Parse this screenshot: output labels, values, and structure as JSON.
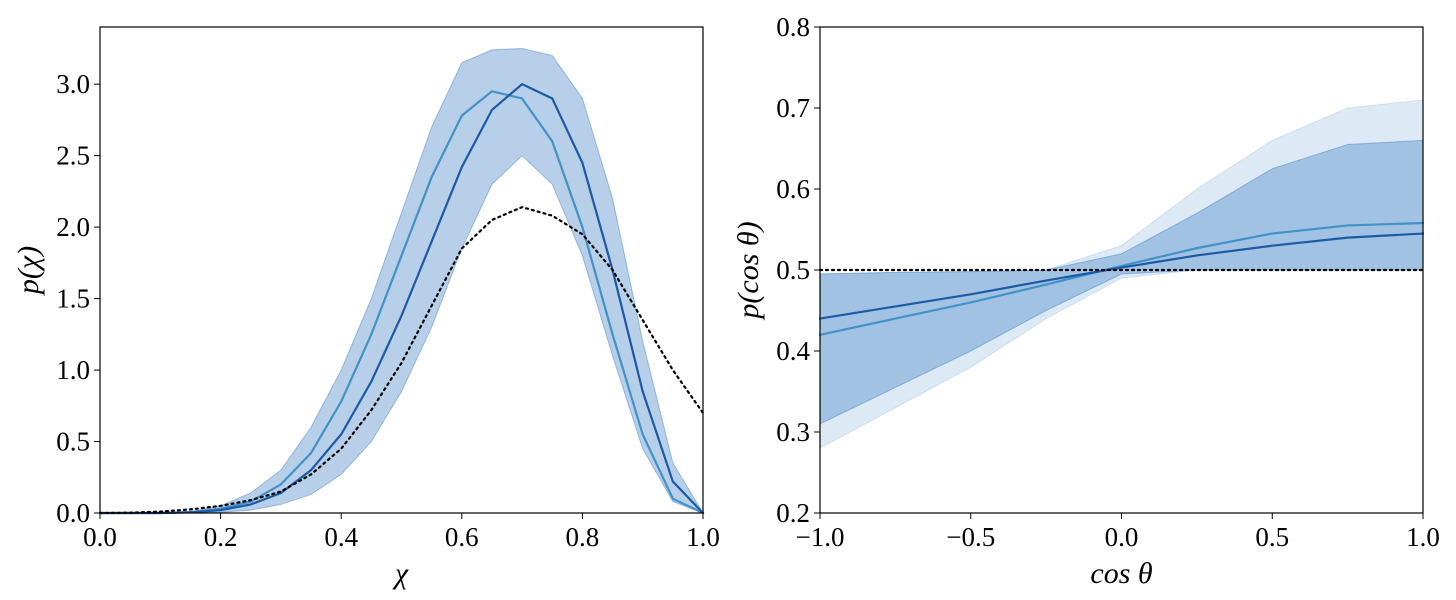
{
  "chart_data": [
    {
      "type": "line",
      "xlabel": "χ",
      "ylabel": "p(χ)",
      "x": [
        0,
        0.05,
        0.1,
        0.15,
        0.2,
        0.25,
        0.3,
        0.35,
        0.4,
        0.45,
        0.5,
        0.55,
        0.6,
        0.65,
        0.7,
        0.75,
        0.8,
        0.85,
        0.9,
        0.95,
        1.0
      ],
      "xlim": [
        0,
        1
      ],
      "ylim": [
        0,
        3.4
      ],
      "xticks": [
        {
          "value": 0,
          "label": "0.0"
        },
        0.2,
        0.4,
        0.6,
        0.8,
        {
          "value": 1,
          "label": "1.0"
        }
      ],
      "yticks": [
        {
          "value": 0,
          "label": "0.0"
        },
        0.5,
        {
          "value": 1,
          "label": "1.0"
        },
        1.5,
        {
          "value": 2,
          "label": "2.0"
        },
        2.5,
        {
          "value": 3,
          "label": "3.0"
        }
      ],
      "bands": [
        {
          "color": "#4a88c7",
          "lower": [
            0,
            0,
            0,
            0,
            0.005,
            0.02,
            0.06,
            0.13,
            0.27,
            0.5,
            0.85,
            1.3,
            1.85,
            2.3,
            2.5,
            2.3,
            1.8,
            1.1,
            0.45,
            0.08,
            0
          ],
          "upper": [
            0,
            0,
            0,
            0.01,
            0.05,
            0.14,
            0.3,
            0.6,
            1.0,
            1.5,
            2.1,
            2.7,
            3.15,
            3.24,
            3.25,
            3.2,
            2.9,
            2.2,
            1.2,
            0.35,
            0
          ]
        }
      ],
      "series": [
        {
          "color": "#4292c6",
          "style": "solid",
          "values": [
            0,
            0,
            0,
            0.005,
            0.03,
            0.08,
            0.2,
            0.42,
            0.78,
            1.25,
            1.8,
            2.35,
            2.78,
            2.95,
            2.9,
            2.6,
            2.0,
            1.25,
            0.55,
            0.1,
            0
          ]
        },
        {
          "color": "#1c5aa6",
          "style": "solid",
          "values": [
            0,
            0,
            0,
            0.005,
            0.02,
            0.06,
            0.14,
            0.3,
            0.55,
            0.92,
            1.38,
            1.9,
            2.42,
            2.82,
            3.0,
            2.9,
            2.45,
            1.7,
            0.85,
            0.22,
            0
          ]
        },
        {
          "color": "#000000",
          "style": "dotted",
          "values": [
            0,
            0.002,
            0.01,
            0.025,
            0.05,
            0.09,
            0.15,
            0.27,
            0.45,
            0.72,
            1.05,
            1.45,
            1.85,
            2.05,
            2.14,
            2.08,
            1.95,
            1.7,
            1.35,
            1.0,
            0.7
          ]
        }
      ]
    },
    {
      "type": "line",
      "xlabel": "cos θ",
      "ylabel": "p(cos θ)",
      "x": [
        -1,
        -0.75,
        -0.5,
        -0.25,
        0,
        0.25,
        0.5,
        0.75,
        1
      ],
      "xlim": [
        -1,
        1
      ],
      "ylim": [
        0.2,
        0.8
      ],
      "xticks": [
        {
          "value": -1,
          "label": "−1.0"
        },
        {
          "value": -0.5,
          "label": "−0.5"
        },
        {
          "value": 0,
          "label": "0.0"
        },
        0.5,
        {
          "value": 1,
          "label": "1.0"
        }
      ],
      "yticks": [
        0.2,
        0.3,
        0.4,
        0.5,
        0.6,
        0.7,
        0.8
      ],
      "bands": [
        {
          "color": "#a9cbe8",
          "lower": [
            0.28,
            0.33,
            0.38,
            0.44,
            0.49,
            0.5,
            0.5,
            0.5,
            0.5
          ],
          "upper": [
            0.495,
            0.497,
            0.498,
            0.5,
            0.53,
            0.6,
            0.66,
            0.7,
            0.71
          ]
        },
        {
          "color": "#4a88c7",
          "lower": [
            0.31,
            0.355,
            0.4,
            0.45,
            0.495,
            0.5,
            0.5,
            0.5,
            0.5
          ],
          "upper": [
            0.495,
            0.497,
            0.498,
            0.5,
            0.52,
            0.57,
            0.625,
            0.655,
            0.66
          ]
        }
      ],
      "series": [
        {
          "color": "#4292c6",
          "style": "solid",
          "values": [
            0.42,
            0.44,
            0.46,
            0.482,
            0.505,
            0.527,
            0.545,
            0.555,
            0.558
          ]
        },
        {
          "color": "#1c5aa6",
          "style": "solid",
          "values": [
            0.44,
            0.455,
            0.47,
            0.487,
            0.503,
            0.518,
            0.53,
            0.54,
            0.545
          ]
        },
        {
          "color": "#000000",
          "style": "dotted",
          "values": [
            0.5,
            0.5,
            0.5,
            0.5,
            0.5,
            0.5,
            0.5,
            0.5,
            0.5
          ]
        }
      ]
    }
  ]
}
